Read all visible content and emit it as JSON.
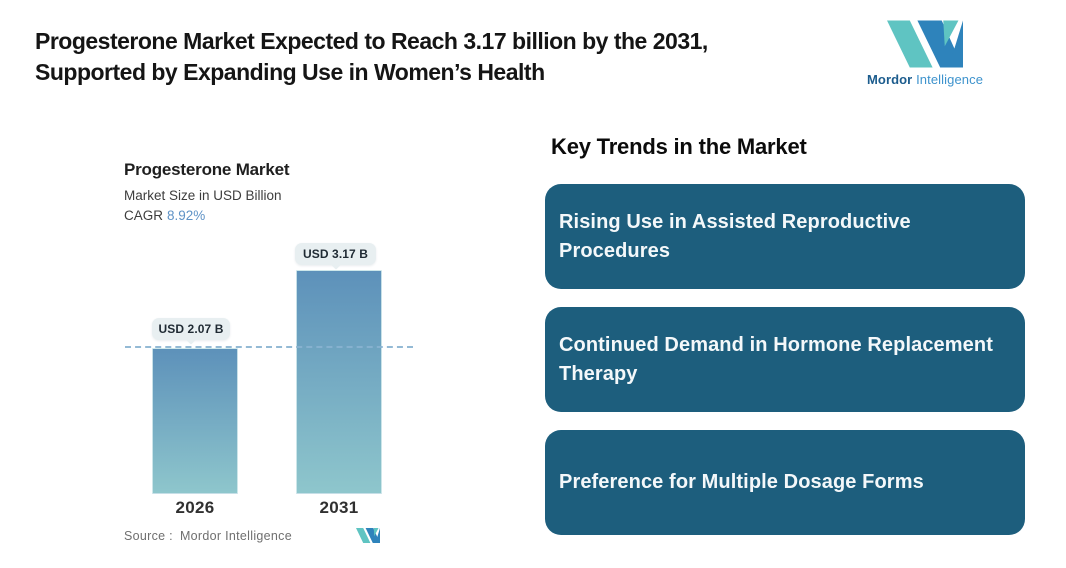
{
  "header": {
    "title_line1": "Progesterone Market Expected to Reach 3.17 billion by the 2031,",
    "title_line2": "Supported by Expanding Use in Women’s Health"
  },
  "brand": {
    "name_bold": "Mordor",
    "name_light": "Intelligence",
    "logo_teal": "#5fc4c2",
    "logo_blue": "#2e83bb"
  },
  "chart": {
    "title": "Progesterone Market",
    "subtitle": "Market Size in USD Billion",
    "cagr_label": "CAGR",
    "cagr_value": "8.92%",
    "cagr_value_color": "#5e92c6",
    "source_label": "Source :",
    "source_value": "Mordor Intelligence"
  },
  "chart_data": {
    "type": "bar",
    "title": "Progesterone Market",
    "subtitle": "Market Size in USD Billion",
    "unit": "USD Billion",
    "categories": [
      "2026",
      "2031"
    ],
    "values": [
      2.07,
      3.17
    ],
    "bar_value_labels": [
      "USD 2.07 B",
      "USD 3.17 B"
    ],
    "cagr_percent": 8.92,
    "reference_line_value": 2.07,
    "ylim": [
      0,
      3.17
    ],
    "grid": false,
    "legend": false,
    "bar_gradient_top": "#5d91ba",
    "bar_gradient_bottom": "#8ec6cc",
    "reference_line_color": "#89b3d1",
    "value_label_bg": "#e8eff1"
  },
  "trends": {
    "heading": "Key Trends in the Market",
    "box_color": "#1d5e7d",
    "items": [
      {
        "label": "Rising Use in Assisted Reproductive Procedures"
      },
      {
        "label": "Continued Demand in Hormone Replacement Therapy"
      },
      {
        "label": "Preference for Multiple Dosage Forms"
      }
    ]
  }
}
